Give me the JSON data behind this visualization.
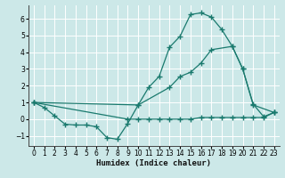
{
  "xlabel": "Humidex (Indice chaleur)",
  "bg_color": "#cce8e8",
  "grid_color": "#ffffff",
  "line_color": "#1a7a6e",
  "xlim": [
    -0.5,
    23.5
  ],
  "ylim": [
    -1.6,
    6.8
  ],
  "xticks": [
    0,
    1,
    2,
    3,
    4,
    5,
    6,
    7,
    8,
    9,
    10,
    11,
    12,
    13,
    14,
    15,
    16,
    17,
    18,
    19,
    20,
    21,
    22,
    23
  ],
  "yticks": [
    -1,
    0,
    1,
    2,
    3,
    4,
    5,
    6
  ],
  "line1_x": [
    0,
    1,
    2,
    3,
    4,
    5,
    6,
    7,
    8,
    9,
    10,
    11,
    12,
    13,
    14,
    15,
    16,
    17,
    18,
    19,
    20,
    21,
    22,
    23
  ],
  "line1_y": [
    1.0,
    0.7,
    0.2,
    -0.3,
    -0.35,
    -0.35,
    -0.45,
    -1.1,
    -1.2,
    -0.25,
    0.85,
    1.9,
    2.55,
    4.3,
    4.95,
    6.25,
    6.35,
    6.1,
    5.35,
    4.35,
    3.0,
    0.9,
    0.15,
    0.4
  ],
  "line2_x": [
    0,
    10,
    13,
    14,
    15,
    16,
    17,
    19,
    20,
    21,
    23
  ],
  "line2_y": [
    1.0,
    0.85,
    1.9,
    2.55,
    2.8,
    3.35,
    4.15,
    4.35,
    3.0,
    0.85,
    0.4
  ],
  "line3_x": [
    0,
    9,
    10,
    11,
    12,
    13,
    14,
    15,
    16,
    17,
    18,
    19,
    20,
    21,
    22,
    23
  ],
  "line3_y": [
    1.0,
    0.0,
    0.0,
    0.0,
    0.0,
    0.0,
    0.0,
    0.0,
    0.1,
    0.1,
    0.1,
    0.1,
    0.1,
    0.1,
    0.1,
    0.4
  ]
}
